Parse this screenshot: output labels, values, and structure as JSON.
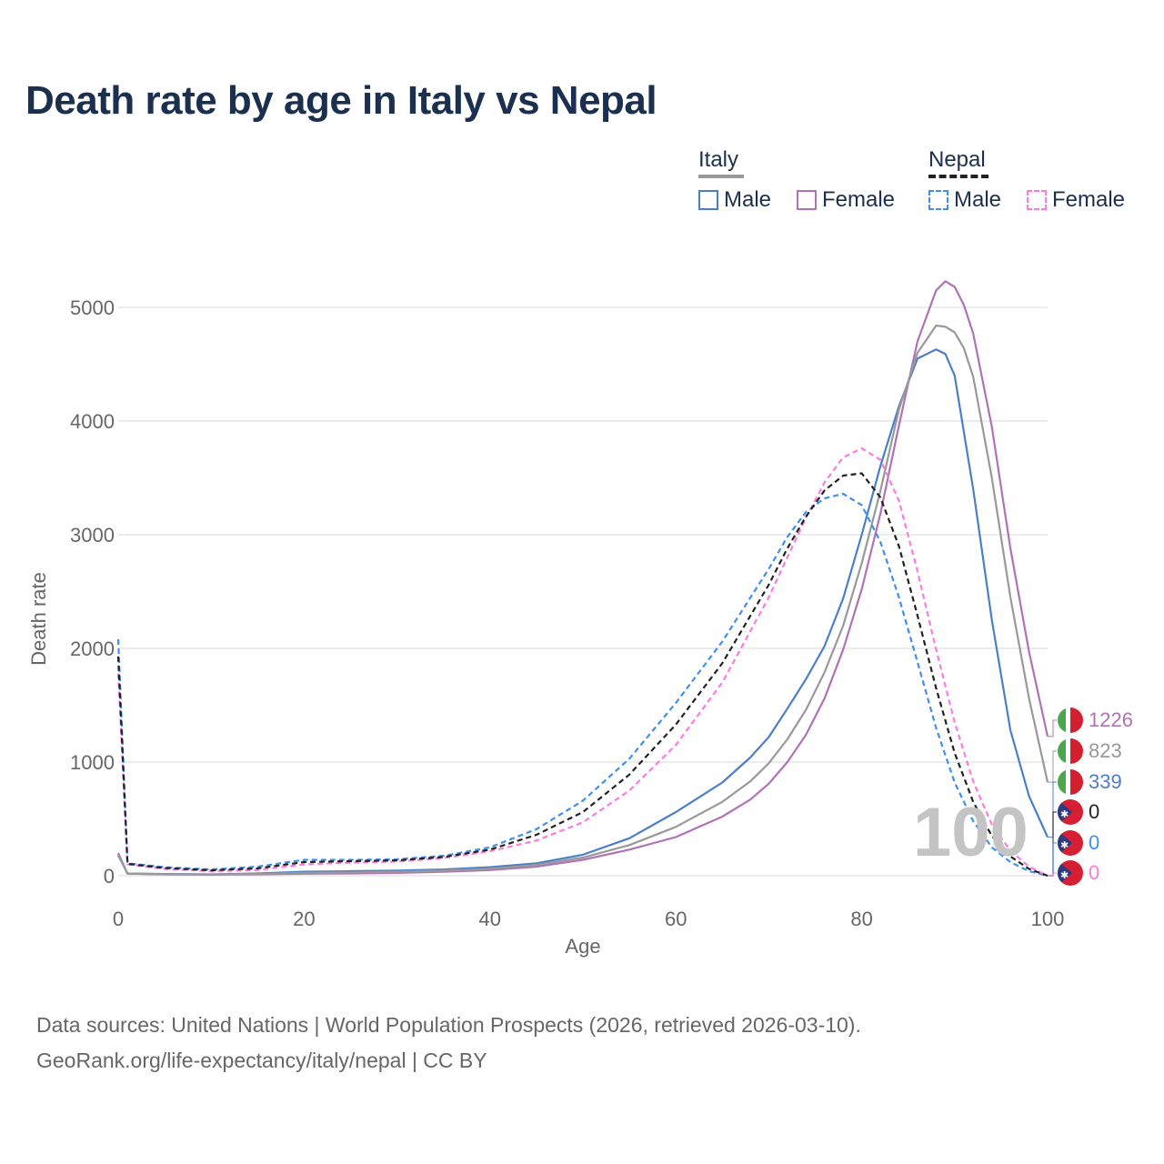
{
  "title": "Death rate by age in Italy vs Nepal",
  "legend": {
    "italy_label": "Italy",
    "nepal_label": "Nepal",
    "male_label": "Male",
    "female_label": "Female"
  },
  "footer": {
    "line1": "Data sources: United Nations | World Population Prospects (2026, retrieved 2026-03-10).",
    "line2": "GeoRank.org/life-expectancy/italy/nepal | CC BY"
  },
  "age_display": "100",
  "end_labels": [
    {
      "text": "1226",
      "color": "#b072b6",
      "flag": "italy"
    },
    {
      "text": "823",
      "color": "#999999",
      "flag": "italy"
    },
    {
      "text": "339",
      "color": "#4a7fc7",
      "flag": "italy"
    },
    {
      "text": "0",
      "color": "#222222",
      "flag": "nepal"
    },
    {
      "text": "0",
      "color": "#3f8ff0",
      "flag": "nepal"
    },
    {
      "text": "0",
      "color": "#ff7ae0",
      "flag": "nepal"
    }
  ],
  "colors": {
    "italy_male": "#4a7fc7",
    "italy_female": "#b072b6",
    "italy_total": "#999999",
    "nepal_male": "#3f8ff0",
    "nepal_female": "#ff7ae0",
    "nepal_total": "#222222"
  },
  "chart_data": {
    "type": "line",
    "title": "Death rate by age in Italy vs Nepal",
    "xlabel": "Age",
    "ylabel": "Death rate",
    "xlim": [
      0,
      100
    ],
    "ylim": [
      0,
      5400
    ],
    "xticks": [
      0,
      20,
      40,
      60,
      80,
      100
    ],
    "yticks": [
      0,
      1000,
      2000,
      3000,
      4000,
      5000
    ],
    "grid": true,
    "series": [
      {
        "name": "Italy Male",
        "style": "solid",
        "color": "#4a7fc7",
        "x": [
          0,
          1,
          5,
          10,
          15,
          20,
          25,
          30,
          35,
          40,
          45,
          50,
          55,
          60,
          65,
          68,
          70,
          72,
          74,
          76,
          78,
          80,
          82,
          84,
          86,
          88,
          89,
          90,
          92,
          94,
          96,
          98,
          100
        ],
        "y": [
          180,
          20,
          15,
          12,
          20,
          35,
          40,
          45,
          55,
          75,
          110,
          185,
          330,
          560,
          820,
          1040,
          1220,
          1470,
          1730,
          2020,
          2440,
          3000,
          3600,
          4130,
          4550,
          4630,
          4590,
          4400,
          3400,
          2250,
          1280,
          700,
          339
        ]
      },
      {
        "name": "Italy Female",
        "style": "solid",
        "color": "#b072b6",
        "x": [
          0,
          1,
          5,
          10,
          15,
          20,
          25,
          30,
          35,
          40,
          45,
          50,
          55,
          60,
          65,
          68,
          70,
          72,
          74,
          76,
          78,
          80,
          82,
          84,
          86,
          88,
          89,
          90,
          91,
          92,
          94,
          96,
          98,
          100
        ],
        "y": [
          200,
          18,
          12,
          10,
          12,
          18,
          20,
          25,
          35,
          50,
          80,
          140,
          230,
          340,
          520,
          670,
          810,
          1000,
          1240,
          1560,
          1990,
          2520,
          3180,
          3960,
          4700,
          5150,
          5230,
          5180,
          5020,
          4770,
          3950,
          2880,
          1970,
          1226
        ]
      },
      {
        "name": "Italy Total",
        "style": "solid",
        "color": "#999999",
        "x": [
          0,
          1,
          5,
          10,
          15,
          20,
          25,
          30,
          35,
          40,
          45,
          50,
          55,
          60,
          65,
          68,
          70,
          72,
          74,
          76,
          78,
          80,
          82,
          84,
          86,
          88,
          89,
          90,
          91,
          92,
          94,
          96,
          98,
          100
        ],
        "y": [
          190,
          19,
          13,
          11,
          16,
          26,
          30,
          35,
          45,
          62,
          95,
          160,
          270,
          430,
          650,
          830,
          990,
          1200,
          1460,
          1790,
          2200,
          2750,
          3380,
          4100,
          4600,
          4840,
          4830,
          4780,
          4640,
          4390,
          3500,
          2450,
          1560,
          823
        ]
      },
      {
        "name": "Nepal Male",
        "style": "dashed",
        "color": "#3f8ff0",
        "x": [
          0,
          1,
          5,
          10,
          15,
          20,
          25,
          30,
          35,
          40,
          45,
          50,
          55,
          60,
          65,
          70,
          72,
          74,
          76,
          78,
          80,
          82,
          84,
          86,
          88,
          90,
          92,
          94,
          96,
          98,
          100
        ],
        "y": [
          2080,
          110,
          75,
          55,
          80,
          140,
          140,
          145,
          175,
          250,
          410,
          660,
          1030,
          1520,
          2060,
          2700,
          2980,
          3200,
          3320,
          3360,
          3260,
          2940,
          2450,
          1880,
          1300,
          820,
          480,
          250,
          120,
          40,
          0
        ]
      },
      {
        "name": "Nepal Female",
        "style": "dashed",
        "color": "#ff7ae0",
        "x": [
          0,
          1,
          5,
          10,
          15,
          20,
          25,
          30,
          35,
          40,
          45,
          50,
          55,
          60,
          65,
          70,
          72,
          74,
          76,
          78,
          80,
          82,
          84,
          86,
          88,
          90,
          92,
          94,
          96,
          98,
          100
        ],
        "y": [
          1780,
          100,
          60,
          40,
          50,
          100,
          115,
          125,
          155,
          215,
          310,
          470,
          750,
          1150,
          1700,
          2450,
          2800,
          3150,
          3460,
          3680,
          3760,
          3660,
          3300,
          2680,
          1990,
          1350,
          830,
          450,
          220,
          80,
          0
        ]
      },
      {
        "name": "Nepal Total",
        "style": "dashed",
        "color": "#222222",
        "x": [
          0,
          1,
          5,
          10,
          15,
          20,
          25,
          30,
          35,
          40,
          45,
          50,
          55,
          60,
          65,
          70,
          72,
          74,
          76,
          78,
          80,
          82,
          84,
          86,
          88,
          90,
          92,
          94,
          96,
          98,
          100
        ],
        "y": [
          1930,
          105,
          68,
          48,
          65,
          120,
          128,
          135,
          165,
          230,
          360,
          560,
          890,
          1330,
          1870,
          2560,
          2880,
          3160,
          3390,
          3520,
          3540,
          3330,
          2900,
          2290,
          1650,
          1080,
          650,
          350,
          170,
          60,
          0
        ]
      }
    ]
  }
}
